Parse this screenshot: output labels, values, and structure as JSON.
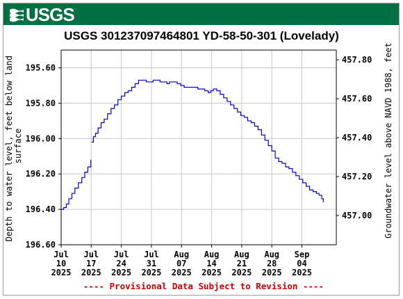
{
  "banner": {
    "logo_text": "USGS",
    "color": "#006f41"
  },
  "chart_data": {
    "type": "line",
    "title": "USGS 301237097464801 YD-58-50-301 (Lovelady)",
    "ylabel_left": "Depth to water level, feet below land surface",
    "ylabel_right": "Groundwater level above NAVD 1988, feet",
    "footer": "---- Provisional Data Subject to Revision ----",
    "line_color": "#0000cc",
    "footer_color": "#cc0000",
    "grid": true,
    "x_range_days": [
      0,
      64
    ],
    "y_left_range": [
      196.6,
      195.5
    ],
    "y_right_range": [
      456.85,
      457.85
    ],
    "x_ticks": [
      {
        "day": 0,
        "lines": [
          "Jul",
          "10",
          "2025"
        ]
      },
      {
        "day": 7,
        "lines": [
          "Jul",
          "17",
          "2025"
        ]
      },
      {
        "day": 14,
        "lines": [
          "Jul",
          "24",
          "2025"
        ]
      },
      {
        "day": 21,
        "lines": [
          "Jul",
          "31",
          "2025"
        ]
      },
      {
        "day": 28,
        "lines": [
          "Aug",
          "07",
          "2025"
        ]
      },
      {
        "day": 35,
        "lines": [
          "Aug",
          "14",
          "2025"
        ]
      },
      {
        "day": 42,
        "lines": [
          "Aug",
          "21",
          "2025"
        ]
      },
      {
        "day": 49,
        "lines": [
          "Aug",
          "28",
          "2025"
        ]
      },
      {
        "day": 56,
        "lines": [
          "Sep",
          "04",
          "2025"
        ]
      }
    ],
    "y_left_ticks": [
      {
        "value": 195.6,
        "label": "195.60"
      },
      {
        "value": 195.8,
        "label": "195.80"
      },
      {
        "value": 196.0,
        "label": "196.00"
      },
      {
        "value": 196.2,
        "label": "196.20"
      },
      {
        "value": 196.4,
        "label": "196.40"
      },
      {
        "value": 196.6,
        "label": "196.60"
      }
    ],
    "y_right_ticks": [
      {
        "value": 457.8,
        "label": "457.80"
      },
      {
        "value": 457.6,
        "label": "457.60"
      },
      {
        "value": 457.4,
        "label": "457.40"
      },
      {
        "value": 457.2,
        "label": "457.20"
      },
      {
        "value": 457.0,
        "label": "457.00"
      }
    ],
    "series": [
      {
        "segments": [
          [
            [
              0.0,
              196.4
            ],
            [
              0.6,
              196.39
            ],
            [
              1.2,
              196.37
            ],
            [
              1.8,
              196.34
            ],
            [
              2.5,
              196.31
            ],
            [
              3.2,
              196.28
            ],
            [
              4.0,
              196.25
            ],
            [
              4.8,
              196.22
            ],
            [
              5.5,
              196.19
            ],
            [
              6.2,
              196.16
            ],
            [
              6.9,
              196.12
            ]
          ],
          [
            [
              7.1,
              196.02
            ],
            [
              7.5,
              195.99
            ],
            [
              8.0,
              195.97
            ],
            [
              8.6,
              195.94
            ],
            [
              9.3,
              195.91
            ],
            [
              10.0,
              195.89
            ],
            [
              10.8,
              195.86
            ],
            [
              11.6,
              195.83
            ],
            [
              12.4,
              195.81
            ],
            [
              13.2,
              195.78
            ],
            [
              14.0,
              195.76
            ],
            [
              14.8,
              195.74
            ],
            [
              15.6,
              195.73
            ],
            [
              16.4,
              195.71
            ],
            [
              17.2,
              195.69
            ],
            [
              18.0,
              195.67
            ],
            [
              19.0,
              195.67
            ],
            [
              19.8,
              195.68
            ],
            [
              20.6,
              195.68
            ],
            [
              21.4,
              195.67
            ],
            [
              22.2,
              195.67
            ],
            [
              23.0,
              195.68
            ],
            [
              23.8,
              195.68
            ],
            [
              24.6,
              195.69
            ],
            [
              25.2,
              195.68
            ],
            [
              25.8,
              195.68
            ],
            [
              26.4,
              195.68
            ],
            [
              27.0,
              195.69
            ],
            [
              27.8,
              195.7
            ],
            [
              28.6,
              195.71
            ],
            [
              29.4,
              195.71
            ],
            [
              30.2,
              195.71
            ],
            [
              31.0,
              195.71
            ],
            [
              31.8,
              195.72
            ],
            [
              32.6,
              195.72
            ],
            [
              33.4,
              195.73
            ],
            [
              34.2,
              195.74
            ],
            [
              34.8,
              195.73
            ],
            [
              35.4,
              195.72
            ],
            [
              36.2,
              195.73
            ],
            [
              37.0,
              195.75
            ],
            [
              37.8,
              195.77
            ],
            [
              38.6,
              195.79
            ],
            [
              39.4,
              195.81
            ],
            [
              40.2,
              195.83
            ],
            [
              41.0,
              195.85
            ],
            [
              41.8,
              195.87
            ],
            [
              42.6,
              195.88
            ],
            [
              43.4,
              195.9
            ],
            [
              44.2,
              195.91
            ],
            [
              45.0,
              195.93
            ],
            [
              45.8,
              195.95
            ],
            [
              46.6,
              195.98
            ],
            [
              47.4,
              196.01
            ],
            [
              48.2,
              196.04
            ],
            [
              49.0,
              196.07
            ],
            [
              49.8,
              196.11
            ],
            [
              50.6,
              196.13
            ],
            [
              51.4,
              196.14
            ],
            [
              52.2,
              196.16
            ],
            [
              53.0,
              196.17
            ],
            [
              53.8,
              196.19
            ],
            [
              54.6,
              196.21
            ],
            [
              55.4,
              196.23
            ],
            [
              56.2,
              196.25
            ],
            [
              57.0,
              196.27
            ],
            [
              57.8,
              196.29
            ],
            [
              58.6,
              196.3
            ],
            [
              59.4,
              196.31
            ],
            [
              60.0,
              196.32
            ],
            [
              60.6,
              196.34
            ],
            [
              61.0,
              196.36
            ]
          ]
        ]
      }
    ]
  }
}
